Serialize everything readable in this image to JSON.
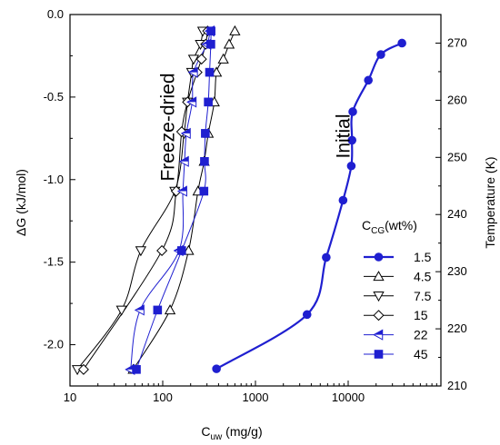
{
  "chart_data": {
    "type": "scatter",
    "xscale": "log",
    "xlim": [
      10,
      100000
    ],
    "ylim": [
      -2.25,
      0.0
    ],
    "y2lim": [
      210,
      275
    ],
    "xlabel": {
      "main": "C",
      "sub": "uw",
      "unit": " (mg/g)"
    },
    "ylabel": "ΔG (kJ/mol)",
    "y2label": "Temperature (K)",
    "xticks": [
      10,
      100,
      1000,
      10000
    ],
    "xtick_labels": [
      "10",
      "100",
      "1000",
      "10000"
    ],
    "yticks": [
      0.0,
      -0.5,
      -1.0,
      -1.5,
      -2.0
    ],
    "ytick_labels": [
      "0.0",
      "-0.5",
      "-1.0",
      "-1.5",
      "-2.0"
    ],
    "y2ticks": [
      210,
      220,
      230,
      240,
      250,
      260,
      270
    ],
    "y2tick_labels": [
      "210",
      "220",
      "230",
      "240",
      "250",
      "260",
      "270"
    ],
    "grid": false,
    "legend": {
      "title_main": "C",
      "title_sub": "CG",
      "title_suffix": "(wt%)",
      "placement": "right"
    },
    "annotations": {
      "freeze_dried": "Freeze-dried",
      "initial": "Initial"
    },
    "series": [
      {
        "name": "1.5",
        "marker": "circle",
        "color": "#1f1fd0",
        "axis": "y2",
        "x": [
          380,
          3600,
          5800,
          8800,
          10800,
          11000,
          11200,
          16500,
          22500,
          38000
        ],
        "y": [
          213,
          222.5,
          232.5,
          242.5,
          248.5,
          253,
          258,
          263.5,
          268,
          270
        ]
      },
      {
        "name": "4.5",
        "marker": "triangle-up",
        "color": "#000000",
        "axis": "y",
        "x": [
          48,
          120,
          190,
          240,
          280,
          310,
          360,
          380,
          450,
          520,
          600
        ],
        "y": [
          -2.15,
          -1.79,
          -1.43,
          -1.07,
          -0.89,
          -0.72,
          -0.53,
          -0.35,
          -0.27,
          -0.18,
          -0.1
        ]
      },
      {
        "name": "7.5",
        "marker": "triangle-down",
        "color": "#000000",
        "axis": "y",
        "x": [
          12,
          36,
          58,
          135,
          170,
          185,
          205,
          215,
          255,
          270
        ],
        "y": [
          -2.15,
          -1.79,
          -1.43,
          -1.07,
          -0.72,
          -0.53,
          -0.35,
          -0.27,
          -0.18,
          -0.1
        ]
      },
      {
        "name": "15",
        "marker": "diamond",
        "color": "#000000",
        "axis": "y",
        "x": [
          14,
          98,
          140,
          160,
          185,
          235,
          262,
          290,
          305
        ],
        "y": [
          -2.15,
          -1.43,
          -1.07,
          -0.71,
          -0.53,
          -0.35,
          -0.27,
          -0.18,
          -0.1
        ]
      },
      {
        "name": "22",
        "marker": "triangle-left",
        "color": "#1f1fd0",
        "axis": "y",
        "x": [
          45,
          57,
          150,
          165,
          172,
          180,
          208,
          215,
          300,
          325
        ],
        "y": [
          -2.15,
          -1.79,
          -1.43,
          -1.07,
          -0.89,
          -0.72,
          -0.53,
          -0.35,
          -0.18,
          -0.1
        ]
      },
      {
        "name": "45",
        "marker": "square",
        "color": "#1f1fd0",
        "axis": "y",
        "x": [
          52,
          88,
          160,
          278,
          282,
          288,
          310,
          320,
          330,
          332
        ],
        "y": [
          -2.15,
          -1.79,
          -1.43,
          -1.07,
          -0.89,
          -0.72,
          -0.53,
          -0.35,
          -0.18,
          -0.1
        ]
      }
    ]
  }
}
